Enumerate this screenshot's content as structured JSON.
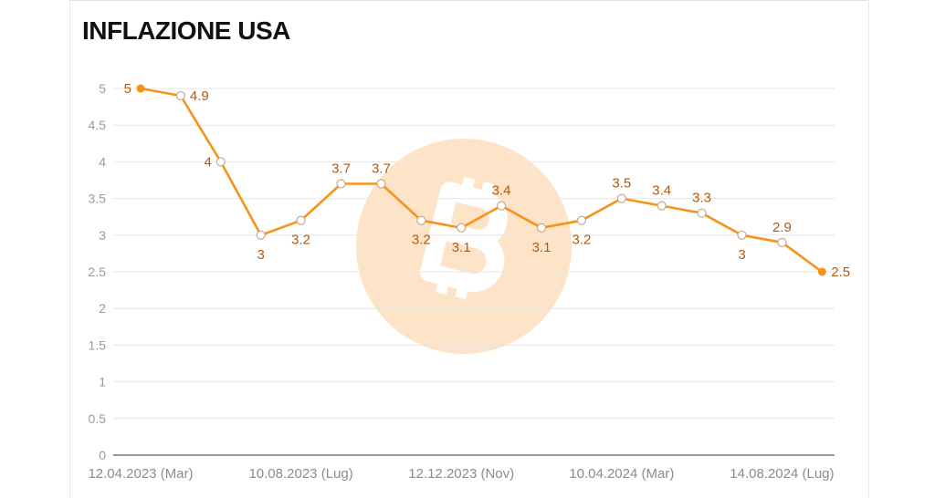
{
  "chart_data": {
    "type": "line",
    "title": "INFLAZIONE USA",
    "xlabel": "",
    "ylabel": "",
    "ylim": [
      0,
      5
    ],
    "yticks": [
      0,
      0.5,
      1,
      1.5,
      2,
      2.5,
      3,
      3.5,
      4,
      4.5,
      5
    ],
    "grid": true,
    "x_tick_labels": [
      {
        "index": 0,
        "label": "12.04.2023 (Mar)"
      },
      {
        "index": 4,
        "label": "10.08.2023 (Lug)"
      },
      {
        "index": 8,
        "label": "12.12.2023 (Nov)"
      },
      {
        "index": 12,
        "label": "10.04.2024 (Mar)"
      },
      {
        "index": 16,
        "label": "14.08.2024 (Lug)"
      }
    ],
    "series": [
      {
        "values": [
          5,
          4.9,
          4,
          3,
          3.2,
          3.7,
          3.7,
          3.2,
          3.1,
          3.4,
          3.1,
          3.2,
          3.5,
          3.4,
          3.3,
          3,
          2.9,
          2.5
        ],
        "color": "#f7931a",
        "label_color": "#b05a12",
        "label_positions": [
          "left",
          "right",
          "left",
          "below",
          "below",
          "above",
          "above",
          "below",
          "below",
          "above",
          "below",
          "below",
          "above",
          "above",
          "above",
          "below",
          "above",
          "right"
        ]
      }
    ],
    "watermark": "bitcoin-logo-icon",
    "watermark_color": "#fde3c8"
  }
}
